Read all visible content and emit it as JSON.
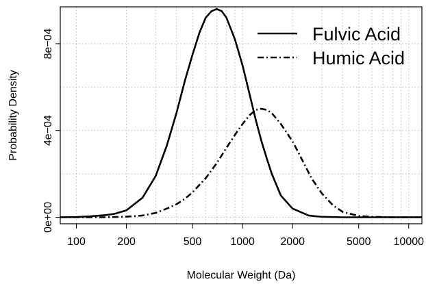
{
  "chart_data": {
    "type": "line",
    "xlabel": "Molecular Weight (Da)",
    "ylabel": "Probability Density",
    "x_scale": "log",
    "xlim": [
      80,
      12000
    ],
    "ylim": [
      -3e-05,
      0.00097
    ],
    "x_ticks": [
      100,
      200,
      500,
      1000,
      2000,
      5000,
      10000
    ],
    "x_tick_labels": [
      "100",
      "200",
      "500",
      "1000",
      "2000",
      "5000",
      "10000"
    ],
    "y_ticks": [
      0,
      0.0004,
      0.0008
    ],
    "y_tick_labels": [
      "0e+00",
      "4e−04",
      "8e−04"
    ],
    "grid": true,
    "legend_position": "top-right",
    "series": [
      {
        "name": "Fulvic Acid",
        "line_style": "solid",
        "color": "#000000",
        "points": [
          [
            80,
            0.0
          ],
          [
            100,
            1e-06
          ],
          [
            120,
            4e-06
          ],
          [
            150,
            1e-05
          ],
          [
            170,
            1.6e-05
          ],
          [
            200,
            3.2e-05
          ],
          [
            250,
            9e-05
          ],
          [
            300,
            0.00019
          ],
          [
            350,
            0.00033
          ],
          [
            400,
            0.00048
          ],
          [
            450,
            0.00063
          ],
          [
            500,
            0.00075
          ],
          [
            550,
            0.00085
          ],
          [
            600,
            0.00092
          ],
          [
            650,
            0.00095
          ],
          [
            700,
            0.00096
          ],
          [
            750,
            0.00095
          ],
          [
            800,
            0.00092
          ],
          [
            900,
            0.00082
          ],
          [
            1000,
            0.0007
          ],
          [
            1100,
            0.00057
          ],
          [
            1200,
            0.00045
          ],
          [
            1300,
            0.00035
          ],
          [
            1400,
            0.00027
          ],
          [
            1500,
            0.0002
          ],
          [
            1700,
            0.0001
          ],
          [
            2000,
            4e-05
          ],
          [
            2500,
            8e-06
          ],
          [
            3000,
            2e-06
          ],
          [
            4000,
            0.0
          ],
          [
            12000,
            0.0
          ]
        ]
      },
      {
        "name": "Humic Acid",
        "line_style": "dashdot",
        "color": "#000000",
        "points": [
          [
            80,
            0.0
          ],
          [
            150,
            0.0
          ],
          [
            200,
            3e-06
          ],
          [
            250,
            8e-06
          ],
          [
            300,
            2e-05
          ],
          [
            350,
            4e-05
          ],
          [
            400,
            6e-05
          ],
          [
            450,
            8.5e-05
          ],
          [
            500,
            0.000115
          ],
          [
            600,
            0.00018
          ],
          [
            700,
            0.00025
          ],
          [
            800,
            0.00032
          ],
          [
            900,
            0.00038
          ],
          [
            1000,
            0.00043
          ],
          [
            1100,
            0.00047
          ],
          [
            1200,
            0.000495
          ],
          [
            1300,
            0.0005
          ],
          [
            1400,
            0.000495
          ],
          [
            1500,
            0.00048
          ],
          [
            1700,
            0.00043
          ],
          [
            2000,
            0.00035
          ],
          [
            2300,
            0.00026
          ],
          [
            2600,
            0.00018
          ],
          [
            3000,
            0.00011
          ],
          [
            3500,
            5.5e-05
          ],
          [
            4000,
            2.5e-05
          ],
          [
            5000,
            6e-06
          ],
          [
            6000,
            2e-06
          ],
          [
            8000,
            0.0
          ],
          [
            12000,
            0.0
          ]
        ]
      }
    ]
  }
}
